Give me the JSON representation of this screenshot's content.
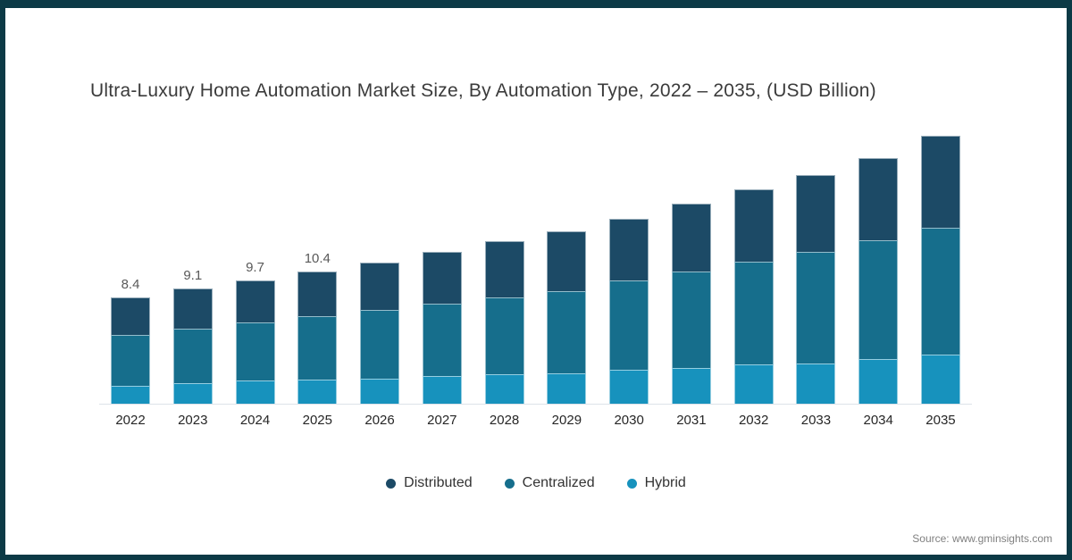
{
  "header": {
    "title": "Ultra-Luxury Home Automation Market Size, By Automation Type, 2022 – 2035, (USD Billion)"
  },
  "footer": {
    "source": "Source: www.gminsights.com"
  },
  "colors": {
    "frame": "#0c3a46",
    "axis_line": "#dde2e8",
    "value_label": "#595959",
    "tick_label": "#262626",
    "distributed": "#1c4a66",
    "centralized": "#166e8c",
    "hybrid": "#1792bd"
  },
  "legend": [
    {
      "label": "Distributed",
      "color": "#1c4a66"
    },
    {
      "label": "Centralized",
      "color": "#166e8c"
    },
    {
      "label": "Hybrid",
      "color": "#1792bd"
    }
  ],
  "chart_data": {
    "type": "bar",
    "stacked": true,
    "title": "Ultra-Luxury Home Automation Market Size, By Automation Type, 2022 – 2035, (USD Billion)",
    "xlabel": "",
    "ylabel": "USD Billion",
    "ylim": [
      0,
      22
    ],
    "grid": false,
    "legend_position": "bottom",
    "categories": [
      "2022",
      "2023",
      "2024",
      "2025",
      "2026",
      "2027",
      "2028",
      "2029",
      "2030",
      "2031",
      "2032",
      "2033",
      "2034",
      "2035"
    ],
    "series": [
      {
        "name": "Distributed",
        "color": "#1c4a66",
        "values": [
          3.0,
          3.2,
          3.3,
          3.5,
          3.7,
          4.1,
          4.4,
          4.7,
          4.9,
          5.4,
          5.7,
          6.0,
          6.5,
          7.2
        ]
      },
      {
        "name": "Centralized",
        "color": "#166e8c",
        "values": [
          4.0,
          4.3,
          4.6,
          5.0,
          5.4,
          5.7,
          6.1,
          6.5,
          7.0,
          7.6,
          8.1,
          8.8,
          9.4,
          10.0
        ]
      },
      {
        "name": "Hybrid",
        "color": "#1792bd",
        "values": [
          1.4,
          1.6,
          1.8,
          1.9,
          2.0,
          2.2,
          2.3,
          2.4,
          2.7,
          2.8,
          3.1,
          3.2,
          3.5,
          3.9
        ]
      }
    ],
    "totals": [
      8.4,
      9.1,
      9.7,
      10.4,
      11.1,
      12.0,
      12.8,
      13.6,
      14.6,
      15.8,
      16.9,
      18.0,
      19.4,
      21.1
    ],
    "total_labels": [
      "8.4",
      "9.1",
      "9.7",
      "10.4",
      "",
      "",
      "",
      "",
      "",
      "",
      "",
      "",
      "",
      ""
    ]
  }
}
